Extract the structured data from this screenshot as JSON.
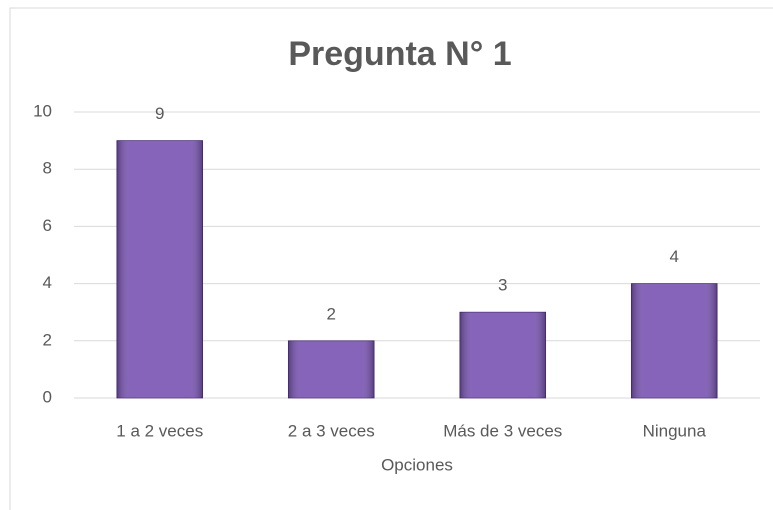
{
  "chart_data": {
    "type": "bar",
    "title": "Pregunta N° 1",
    "x_label": "Opciones",
    "categories": [
      "1 a 2 veces",
      "2 a 3 veces",
      "Más de 3 veces",
      "Ninguna"
    ],
    "values": [
      9,
      2,
      3,
      4
    ],
    "color": "#7b57b3",
    "ylim": [
      0,
      10
    ],
    "yticks": [
      0,
      2,
      4,
      6,
      8,
      10
    ],
    "grid": true
  }
}
